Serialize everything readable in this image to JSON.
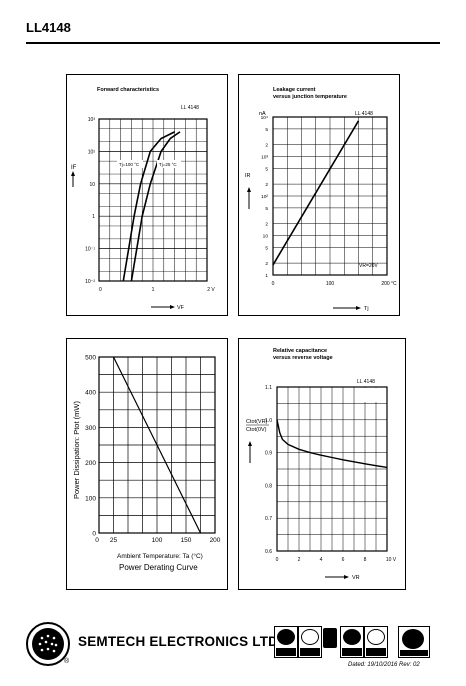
{
  "page": {
    "title": "LL4148"
  },
  "footer": {
    "brand": "SEMTECH ELECTRONICS LTD.",
    "registered": "®",
    "dated": "Dated: 19/10/2016   Rev: 02"
  },
  "chart_data": [
    {
      "id": "forward",
      "type": "line",
      "title": "Forward characteristics",
      "part": "LL 4148",
      "xlabel": "VF",
      "ylabel": "IF",
      "xlim": [
        0,
        2
      ],
      "x_unit": "V",
      "yscale": "log",
      "ylim": [
        0.01,
        1000
      ],
      "x_ticks": [
        "0",
        "1",
        "2 V"
      ],
      "y_ticks": [
        "10⁻²",
        "10⁻¹",
        "1",
        "10",
        "10²",
        "10³"
      ],
      "grid": true,
      "series": [
        {
          "name": "Tj=100 °C",
          "points": [
            [
              0.45,
              0.01
            ],
            [
              0.55,
              0.1
            ],
            [
              0.65,
              1
            ],
            [
              0.77,
              10
            ],
            [
              0.95,
              100
            ],
            [
              1.15,
              250
            ],
            [
              1.4,
              400
            ]
          ]
        },
        {
          "name": "Tj=25 °C",
          "points": [
            [
              0.6,
              0.01
            ],
            [
              0.7,
              0.1
            ],
            [
              0.8,
              1
            ],
            [
              0.95,
              10
            ],
            [
              1.15,
              100
            ],
            [
              1.32,
              250
            ],
            [
              1.5,
              400
            ]
          ]
        }
      ]
    },
    {
      "id": "leakage",
      "type": "line",
      "title": "Leakage current",
      "subtitle": "versus junction temperature",
      "part": "LL 4148",
      "xlabel": "Tj",
      "ylabel": "IR",
      "y_unit": "nA",
      "xlim": [
        0,
        200
      ],
      "yscale": "log",
      "ylim": [
        1,
        10000
      ],
      "x_ticks": [
        "0",
        "100",
        "200 °C"
      ],
      "y_ticks": [
        "1",
        "2",
        "5",
        "10",
        "2",
        "5",
        "10²",
        "2",
        "5",
        "10³",
        "2",
        "5",
        "10⁴"
      ],
      "annotation": "VR=20V",
      "grid": true,
      "series": [
        {
          "points": [
            [
              0,
              1.8
            ],
            [
              150,
              8000
            ]
          ]
        }
      ]
    },
    {
      "id": "derating",
      "type": "line",
      "title": "Power Derating Curve",
      "xlabel": "Ambient Temperature: Ta (°C)",
      "ylabel": "Power Dissipation: Ptot (mW)",
      "xlim": [
        0,
        200
      ],
      "ylim": [
        0,
        500
      ],
      "x_ticks": [
        "0",
        "25",
        "100",
        "150",
        "200"
      ],
      "y_ticks": [
        "0",
        "100",
        "200",
        "300",
        "400",
        "500"
      ],
      "grid": true,
      "series": [
        {
          "points": [
            [
              25,
              500
            ],
            [
              175,
              0
            ]
          ]
        }
      ]
    },
    {
      "id": "capacitance",
      "type": "line",
      "title": "Relative capacitance",
      "subtitle": "versus reverse voltage",
      "part": "LL 4148",
      "conditions": [
        "Tj=25°C",
        "f=1MHz"
      ],
      "xlabel": "VR",
      "ylabel_top": "Ctot(VR)",
      "ylabel_bottom": "Ctot(0V)",
      "xlim": [
        0,
        10
      ],
      "ylim": [
        0.6,
        1.1
      ],
      "x_ticks": [
        "0",
        "2",
        "4",
        "6",
        "8",
        "10 V"
      ],
      "y_ticks": [
        "0.6",
        "0.7",
        "0.8",
        "0.9",
        "1.0",
        "1.1"
      ],
      "grid": true,
      "series": [
        {
          "points": [
            [
              0,
              1.0
            ],
            [
              0.25,
              0.96
            ],
            [
              0.5,
              0.94
            ],
            [
              1,
              0.925
            ],
            [
              2,
              0.91
            ],
            [
              3,
              0.9
            ],
            [
              4,
              0.892
            ],
            [
              5,
              0.885
            ],
            [
              6,
              0.878
            ],
            [
              7,
              0.872
            ],
            [
              8,
              0.866
            ],
            [
              9,
              0.86
            ],
            [
              10,
              0.855
            ]
          ]
        }
      ]
    }
  ]
}
